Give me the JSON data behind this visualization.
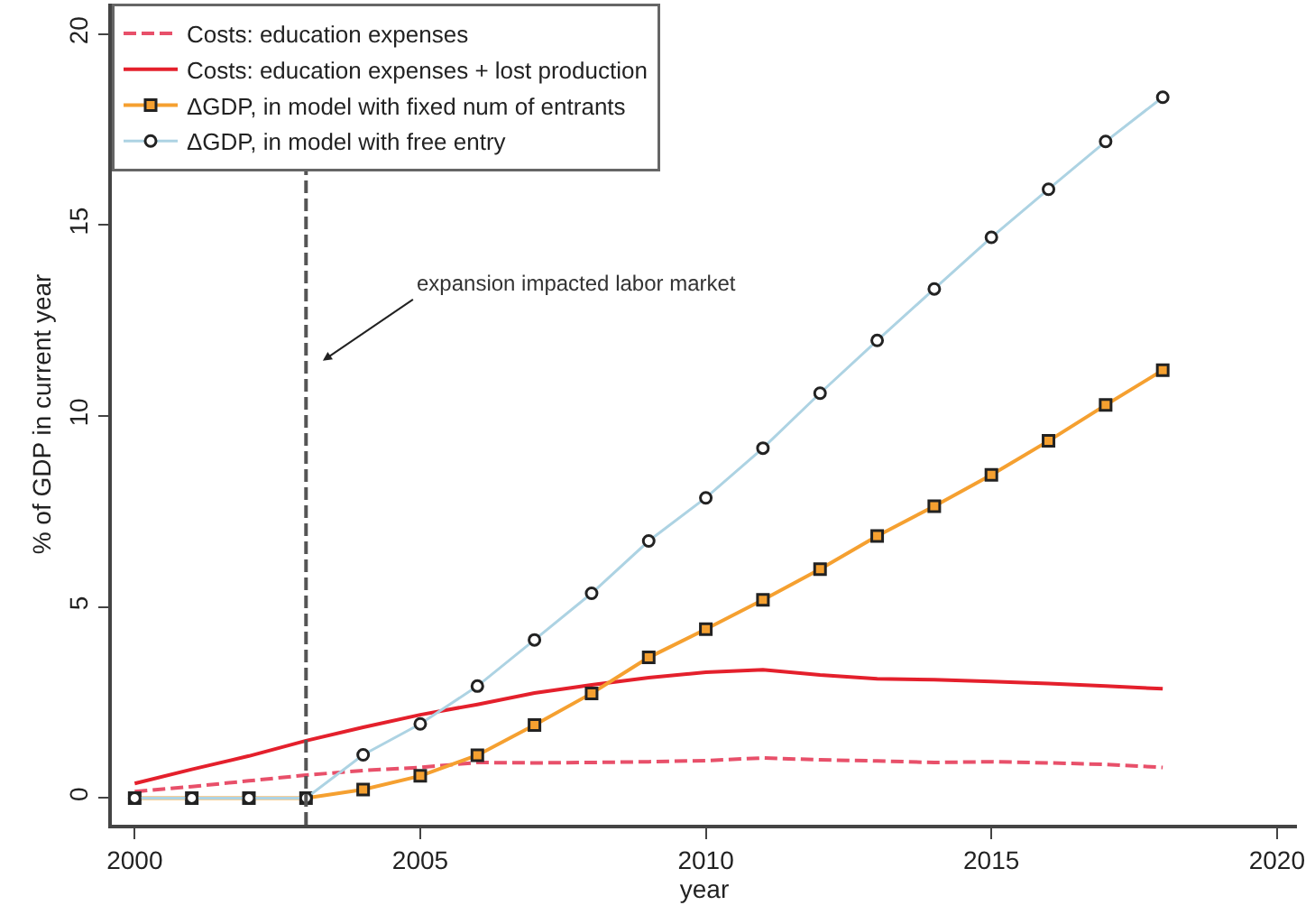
{
  "chart_data": {
    "type": "line",
    "xlabel": "year",
    "ylabel": "% of GDP in current year",
    "x": [
      2000,
      2001,
      2002,
      2003,
      2004,
      2005,
      2006,
      2007,
      2008,
      2009,
      2010,
      2011,
      2012,
      2013,
      2014,
      2015,
      2016,
      2017,
      2018
    ],
    "series": [
      {
        "name": "Costs: education expenses",
        "color": "#e8506a",
        "line_style": "dashed",
        "marker": "none",
        "values": [
          0.17,
          0.3,
          0.45,
          0.6,
          0.72,
          0.8,
          0.93,
          0.92,
          0.93,
          0.95,
          0.98,
          1.05,
          1.0,
          0.97,
          0.93,
          0.95,
          0.92,
          0.88,
          0.8
        ]
      },
      {
        "name": "Costs: education expenses + lost production",
        "color": "#e4202c",
        "line_style": "solid",
        "marker": "none",
        "values": [
          0.38,
          0.75,
          1.1,
          1.5,
          1.85,
          2.18,
          2.45,
          2.75,
          2.96,
          3.15,
          3.29,
          3.36,
          3.22,
          3.12,
          3.1,
          3.05,
          3.0,
          2.93,
          2.86
        ]
      },
      {
        "name": "ΔGDP, in model with fixed num of entrants",
        "color": "#f5a030",
        "line_style": "solid",
        "marker": "square",
        "values": [
          0,
          0,
          0,
          0,
          0.22,
          0.58,
          1.12,
          1.91,
          2.74,
          3.68,
          4.42,
          5.19,
          5.99,
          6.86,
          7.64,
          8.46,
          9.35,
          10.29,
          11.2
        ]
      },
      {
        "name": "ΔGDP, in model with free entry",
        "color": "#add3e3",
        "line_style": "solid",
        "marker": "circle",
        "values": [
          0,
          0,
          0,
          0,
          1.13,
          1.94,
          2.93,
          4.14,
          5.36,
          6.73,
          7.86,
          9.16,
          10.6,
          11.98,
          13.33,
          14.68,
          15.94,
          17.19,
          18.35
        ]
      }
    ],
    "xlim": [
      1999.6,
      2020.35
    ],
    "xticks": [
      2000,
      2005,
      2010,
      2015,
      2020
    ],
    "ylim": [
      -0.7,
      20.8
    ],
    "yticks": [
      0,
      5,
      10,
      15,
      20
    ],
    "ref_lines": [
      {
        "axis": "x",
        "value": 2003,
        "label": null,
        "color": "#555555",
        "line_style": "dashed"
      }
    ],
    "annotations": [
      "expansion impacted labor market"
    ],
    "legend": "top left"
  }
}
